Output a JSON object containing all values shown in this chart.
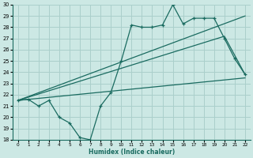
{
  "xlabel": "Humidex (Indice chaleur)",
  "bg_color": "#cce8e4",
  "grid_color": "#aacfcb",
  "line_color": "#1a6b60",
  "xlim": [
    -0.5,
    22.5
  ],
  "ylim": [
    18,
    30
  ],
  "xticks": [
    0,
    1,
    2,
    3,
    4,
    5,
    6,
    7,
    8,
    9,
    10,
    11,
    12,
    13,
    14,
    15,
    16,
    17,
    18,
    19,
    20,
    21,
    22
  ],
  "yticks": [
    18,
    19,
    20,
    21,
    22,
    23,
    24,
    25,
    26,
    27,
    28,
    29,
    30
  ],
  "series1_x": [
    0,
    1,
    2,
    3,
    4,
    5,
    6,
    7,
    8,
    9,
    10,
    11,
    12,
    13,
    14,
    15,
    16,
    17,
    18,
    19,
    20,
    21,
    22
  ],
  "series1_y": [
    21.5,
    21.6,
    21.0,
    21.5,
    20.0,
    19.5,
    18.2,
    18.0,
    21.0,
    22.2,
    25.0,
    28.2,
    28.0,
    28.0,
    28.2,
    30.0,
    28.3,
    28.8,
    28.8,
    28.8,
    27.0,
    25.2,
    23.8
  ],
  "line1_x": [
    0,
    22
  ],
  "line1_y": [
    21.5,
    29.0
  ],
  "line2_x": [
    0,
    20,
    22
  ],
  "line2_y": [
    21.5,
    27.2,
    23.8
  ],
  "line3_x": [
    0,
    22
  ],
  "line3_y": [
    21.5,
    23.5
  ]
}
